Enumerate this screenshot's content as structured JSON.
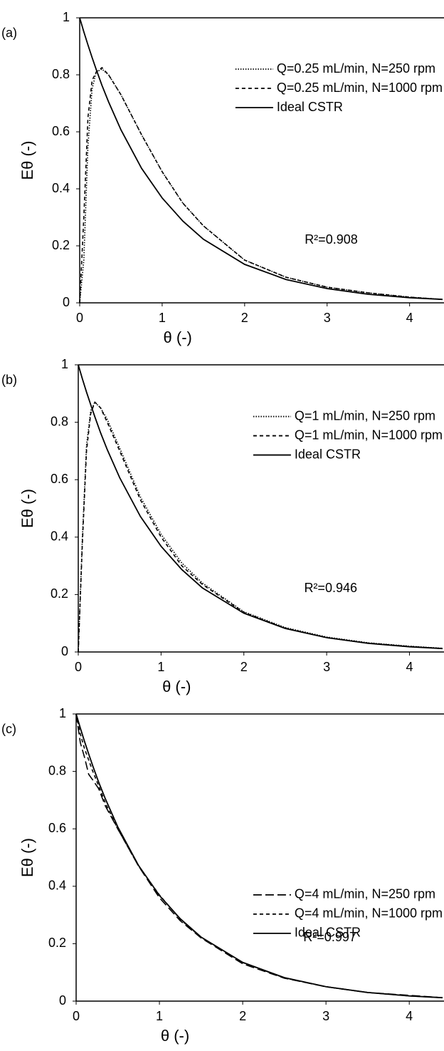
{
  "chart_data": [
    {
      "type": "line",
      "panel_label": "(a)",
      "xlabel": "θ (-)",
      "ylabel": "Eθ (-)",
      "annotation": "R²=0.908",
      "legend": "upper right",
      "xlim": [
        0,
        4.4
      ],
      "ylim": [
        0,
        1
      ],
      "xticks": [
        0,
        1,
        2,
        3,
        4
      ],
      "yticks": [
        0,
        0.2,
        0.4,
        0.6,
        0.8,
        1
      ],
      "x": [
        0,
        0.05,
        0.1,
        0.15,
        0.2,
        0.27,
        0.35,
        0.5,
        0.75,
        1,
        1.25,
        1.5,
        2,
        2.5,
        3,
        3.5,
        4,
        4.4
      ],
      "series": [
        {
          "name": "Q=0.25 mL/min, N=250 rpm",
          "color": "#000000",
          "dash": "dotted",
          "values": [
            0,
            0.15,
            0.55,
            0.75,
            0.81,
            0.82,
            0.8,
            0.73,
            0.59,
            0.46,
            0.35,
            0.27,
            0.15,
            0.09,
            0.055,
            0.035,
            0.02,
            0.012
          ]
        },
        {
          "name": "Q=0.25 mL/min, N=1000 rpm",
          "color": "#000000",
          "dash": "dashed",
          "values": [
            0,
            0.3,
            0.65,
            0.78,
            0.81,
            0.825,
            0.8,
            0.73,
            0.59,
            0.46,
            0.35,
            0.27,
            0.15,
            0.09,
            0.055,
            0.035,
            0.02,
            0.012
          ]
        },
        {
          "name": "Ideal CSTR",
          "color": "#000000",
          "dash": "solid",
          "values": [
            1,
            0.951,
            0.905,
            0.861,
            0.819,
            0.763,
            0.705,
            0.607,
            0.472,
            0.368,
            0.287,
            0.223,
            0.135,
            0.082,
            0.05,
            0.03,
            0.018,
            0.012
          ]
        }
      ]
    },
    {
      "type": "line",
      "panel_label": "(b)",
      "xlabel": "θ (-)",
      "ylabel": "Eθ (-)",
      "annotation": "R²=0.946",
      "legend": "upper right",
      "xlim": [
        0,
        4.4
      ],
      "ylim": [
        0,
        1
      ],
      "xticks": [
        0,
        1,
        2,
        3,
        4
      ],
      "yticks": [
        0,
        0.2,
        0.4,
        0.6,
        0.8,
        1
      ],
      "x": [
        0,
        0.05,
        0.1,
        0.15,
        0.2,
        0.27,
        0.35,
        0.5,
        0.75,
        1,
        1.25,
        1.5,
        2,
        2.5,
        3,
        3.5,
        4,
        4.4
      ],
      "series": [
        {
          "name": "Q=1 mL/min, N=250 rpm",
          "color": "#000000",
          "dash": "dotted",
          "values": [
            0,
            0.4,
            0.72,
            0.84,
            0.87,
            0.85,
            0.81,
            0.71,
            0.54,
            0.41,
            0.31,
            0.24,
            0.14,
            0.085,
            0.052,
            0.032,
            0.02,
            0.013
          ]
        },
        {
          "name": "Q=1 mL/min, N=1000 rpm",
          "color": "#000000",
          "dash": "dashed",
          "values": [
            0,
            0.38,
            0.7,
            0.83,
            0.87,
            0.85,
            0.8,
            0.7,
            0.53,
            0.4,
            0.3,
            0.235,
            0.138,
            0.083,
            0.05,
            0.031,
            0.019,
            0.012
          ]
        },
        {
          "name": "Ideal CSTR",
          "color": "#000000",
          "dash": "solid",
          "values": [
            1,
            0.951,
            0.905,
            0.861,
            0.819,
            0.763,
            0.705,
            0.607,
            0.472,
            0.368,
            0.287,
            0.223,
            0.135,
            0.082,
            0.05,
            0.03,
            0.018,
            0.012
          ]
        }
      ]
    },
    {
      "type": "line",
      "panel_label": "(c)",
      "xlabel": "θ (-)",
      "ylabel": "Eθ (-)",
      "annotation": "R²=0.997",
      "legend": "center right",
      "xlim": [
        0,
        4.4
      ],
      "ylim": [
        0,
        1
      ],
      "xticks": [
        0,
        1,
        2,
        3,
        4
      ],
      "yticks": [
        0,
        0.2,
        0.4,
        0.6,
        0.8,
        1
      ],
      "x": [
        0,
        0.05,
        0.1,
        0.15,
        0.2,
        0.27,
        0.35,
        0.5,
        0.75,
        1,
        1.25,
        1.5,
        2,
        2.5,
        3,
        3.5,
        4,
        4.4
      ],
      "series": [
        {
          "name": "Q=4 mL/min, N=250 rpm",
          "color": "#000000",
          "dash": "longdash",
          "values": [
            1,
            0.9,
            0.85,
            0.79,
            0.77,
            0.74,
            0.68,
            0.6,
            0.47,
            0.36,
            0.28,
            0.22,
            0.13,
            0.08,
            0.05,
            0.03,
            0.02,
            0.012
          ]
        },
        {
          "name": "Q=4 mL/min, N=1000 rpm",
          "color": "#000000",
          "dash": "dashed",
          "values": [
            1,
            0.93,
            0.88,
            0.84,
            0.8,
            0.75,
            0.69,
            0.6,
            0.47,
            0.37,
            0.285,
            0.222,
            0.134,
            0.081,
            0.05,
            0.03,
            0.018,
            0.012
          ]
        },
        {
          "name": "Ideal CSTR",
          "color": "#000000",
          "dash": "solid",
          "values": [
            1,
            0.951,
            0.905,
            0.861,
            0.819,
            0.763,
            0.705,
            0.607,
            0.472,
            0.368,
            0.287,
            0.223,
            0.135,
            0.082,
            0.05,
            0.03,
            0.018,
            0.012
          ]
        }
      ]
    }
  ]
}
